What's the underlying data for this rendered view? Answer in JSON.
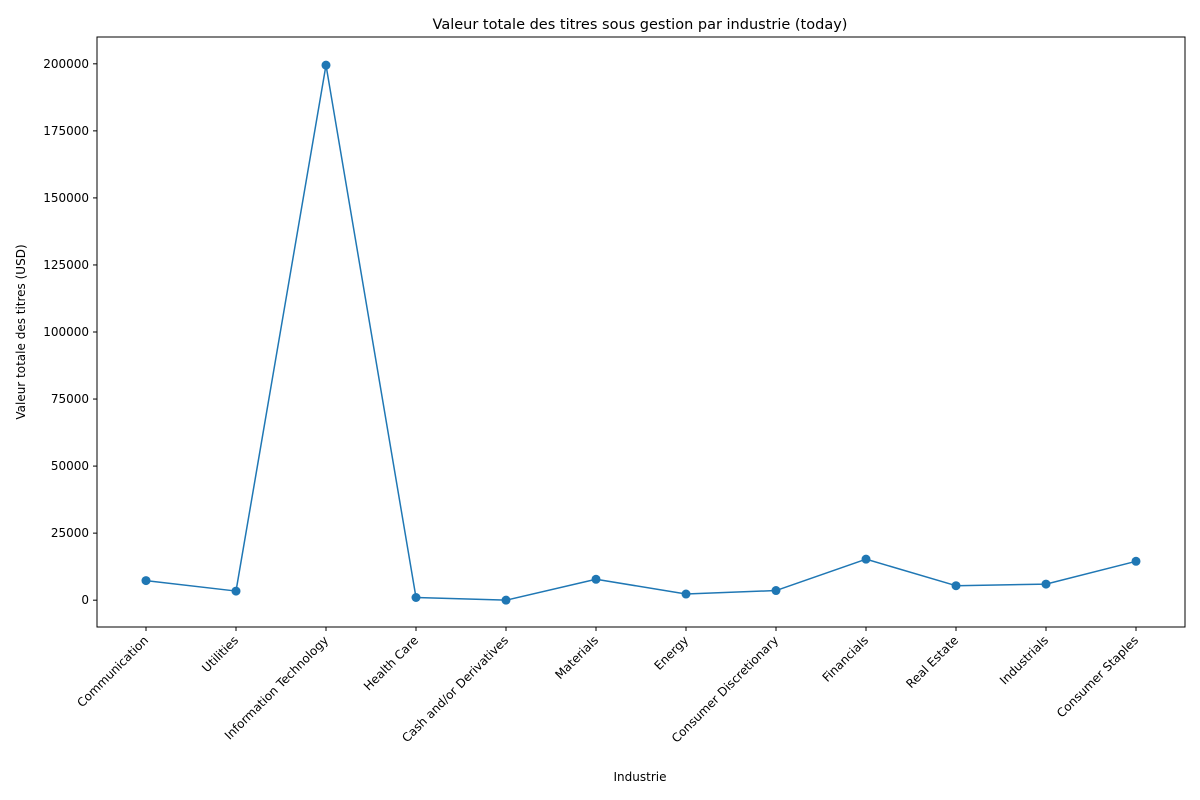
{
  "chart_data": {
    "type": "line",
    "title": "Valeur totale des titres sous gestion par industrie (today)",
    "xlabel": "Industrie",
    "ylabel": "Valeur totale des titres (USD)",
    "categories": [
      "Communication",
      "Utilities",
      "Information Technology",
      "Health Care",
      "Cash and/or Derivatives",
      "Materials",
      "Energy",
      "Consumer Discretionary",
      "Financials",
      "Real Estate",
      "Industrials",
      "Consumer Staples"
    ],
    "series": [
      {
        "values": [
          7300,
          3400,
          199500,
          1000,
          0,
          7800,
          2300,
          3600,
          15300,
          5400,
          6000,
          14500
        ]
      }
    ],
    "ylim": [
      -10000,
      210000
    ],
    "yticks": [
      0,
      25000,
      50000,
      75000,
      100000,
      125000,
      150000,
      175000,
      200000
    ],
    "ytick_labels": [
      "0",
      "25000",
      "50000",
      "75000",
      "100000",
      "125000",
      "150000",
      "175000",
      "200000"
    ],
    "grid": false,
    "line_color": "#1f77b4",
    "marker": "circle"
  }
}
